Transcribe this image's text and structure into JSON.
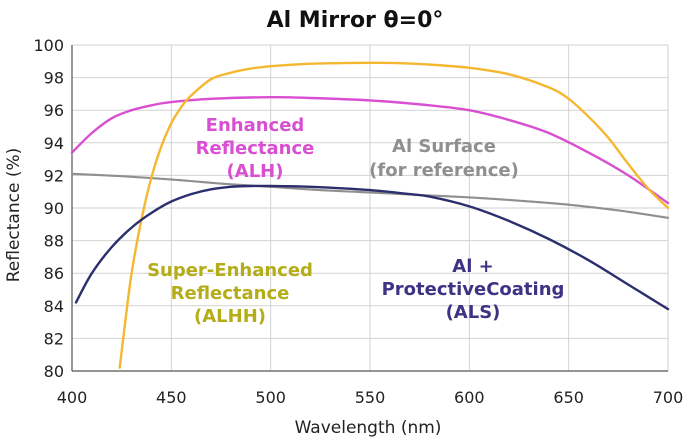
{
  "chart_data": {
    "type": "line",
    "title": "Al Mirror  θ=0°",
    "xlabel": "Wavelength (nm)",
    "ylabel": "Reflectance (%)",
    "xlim": [
      400,
      700
    ],
    "ylim": [
      80,
      100
    ],
    "xticks": [
      "400",
      "450",
      "500",
      "550",
      "600",
      "650",
      "700"
    ],
    "yticks": [
      "80",
      "82",
      "84",
      "86",
      "88",
      "90",
      "92",
      "94",
      "96",
      "98",
      "100"
    ],
    "grid": true,
    "legend": "none",
    "series": [
      {
        "name": "Enhanced Reflectance (ALH)",
        "label_lines": [
          "Enhanced",
          "Reflectance",
          "(ALH)"
        ],
        "color": "#d94fd1",
        "x": [
          400,
          410,
          420,
          430,
          440,
          450,
          470,
          500,
          520,
          550,
          580,
          600,
          620,
          640,
          660,
          680,
          700
        ],
        "y": [
          93.4,
          94.6,
          95.5,
          96.0,
          96.3,
          96.5,
          96.7,
          96.8,
          96.75,
          96.6,
          96.3,
          96.0,
          95.4,
          94.6,
          93.4,
          92.0,
          90.3
        ]
      },
      {
        "name": "Al Surface (for reference)",
        "label_lines": [
          "Al Surface",
          "(for reference)"
        ],
        "color": "#8f8f8f",
        "x": [
          400,
          425,
          450,
          475,
          500,
          525,
          550,
          575,
          600,
          625,
          650,
          675,
          700
        ],
        "y": [
          92.1,
          91.95,
          91.75,
          91.5,
          91.3,
          91.1,
          90.95,
          90.8,
          90.65,
          90.45,
          90.2,
          89.85,
          89.4
        ]
      },
      {
        "name": "Super-Enhanced Reflectance (ALHH)",
        "label_lines": [
          "Super-Enhanced",
          "Reflectance",
          "(ALHH)"
        ],
        "color": "#f5b730",
        "x": [
          424,
          427,
          430,
          435,
          440,
          445,
          450,
          455,
          460,
          470,
          480,
          490,
          500,
          520,
          540,
          560,
          580,
          600,
          620,
          640,
          650,
          660,
          670,
          680,
          690,
          700
        ],
        "y": [
          80.2,
          83.2,
          86.0,
          89.3,
          91.9,
          93.8,
          95.2,
          96.2,
          96.9,
          97.9,
          98.3,
          98.55,
          98.7,
          98.85,
          98.9,
          98.9,
          98.8,
          98.6,
          98.2,
          97.4,
          96.7,
          95.6,
          94.3,
          92.7,
          91.2,
          90.0
        ]
      },
      {
        "name": "Al + ProtectiveCoating (ALS)",
        "label_lines": [
          "Al +",
          "ProtectiveCoating",
          "(ALS)"
        ],
        "color": "#2b2f6e",
        "x": [
          402,
          410,
          420,
          430,
          440,
          450,
          460,
          470,
          480,
          490,
          500,
          520,
          550,
          570,
          580,
          600,
          620,
          640,
          660,
          680,
          700
        ],
        "y": [
          84.2,
          86.0,
          87.6,
          88.8,
          89.7,
          90.4,
          90.85,
          91.15,
          91.3,
          91.35,
          91.35,
          91.3,
          91.1,
          90.85,
          90.7,
          90.1,
          89.2,
          88.1,
          86.8,
          85.3,
          83.8
        ]
      }
    ]
  }
}
